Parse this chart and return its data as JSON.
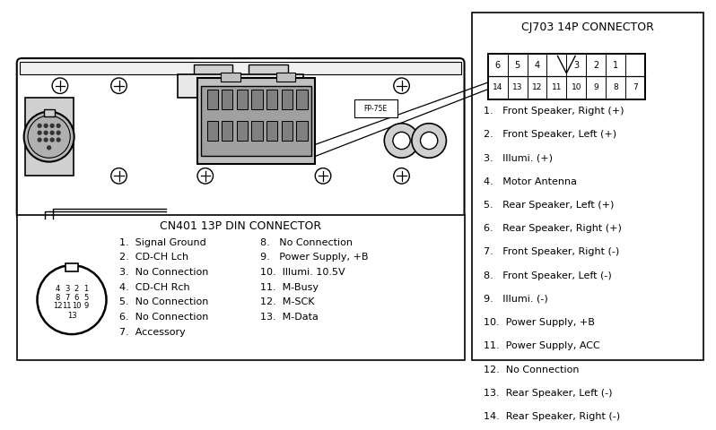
{
  "bg_color": "#ffffff",
  "title_cn401": "CN401 13P DIN CONNECTOR",
  "title_cj703": "CJ703 14P CONNECTOR",
  "cn401_pins_col1": [
    "1.  Signal Ground",
    "2.  CD-CH Lch",
    "3.  No Connection",
    "4.  CD-CH Rch",
    "5.  No Connection",
    "6.  No Connection",
    "7.  Accessory"
  ],
  "cn401_pins_col2": [
    "8.   No Connection",
    "9.   Power Supply, +B",
    "10.  Illumi. 10.5V",
    "11.  M-Busy",
    "12.  M-SCK",
    "13.  M-Data"
  ],
  "cj703_pins": [
    "1.   Front Speaker, Right (+)",
    "2.   Front Speaker, Left (+)",
    "3.   Illumi. (+)",
    "4.   Motor Antenna",
    "5.   Rear Speaker, Left (+)",
    "6.   Rear Speaker, Right (+)",
    "7.   Front Speaker, Right (-)",
    "8.   Front Speaker, Left (-)",
    "9.   Illumi. (-)",
    "10.  Power Supply, +B",
    "11.  Power Supply, ACC",
    "12.  No Connection",
    "13.  Rear Speaker, Left (-)",
    "14.  Rear Speaker, Right (-)"
  ],
  "font_size_title": 9.0,
  "font_size_text": 8.0,
  "font_size_small": 7.0
}
